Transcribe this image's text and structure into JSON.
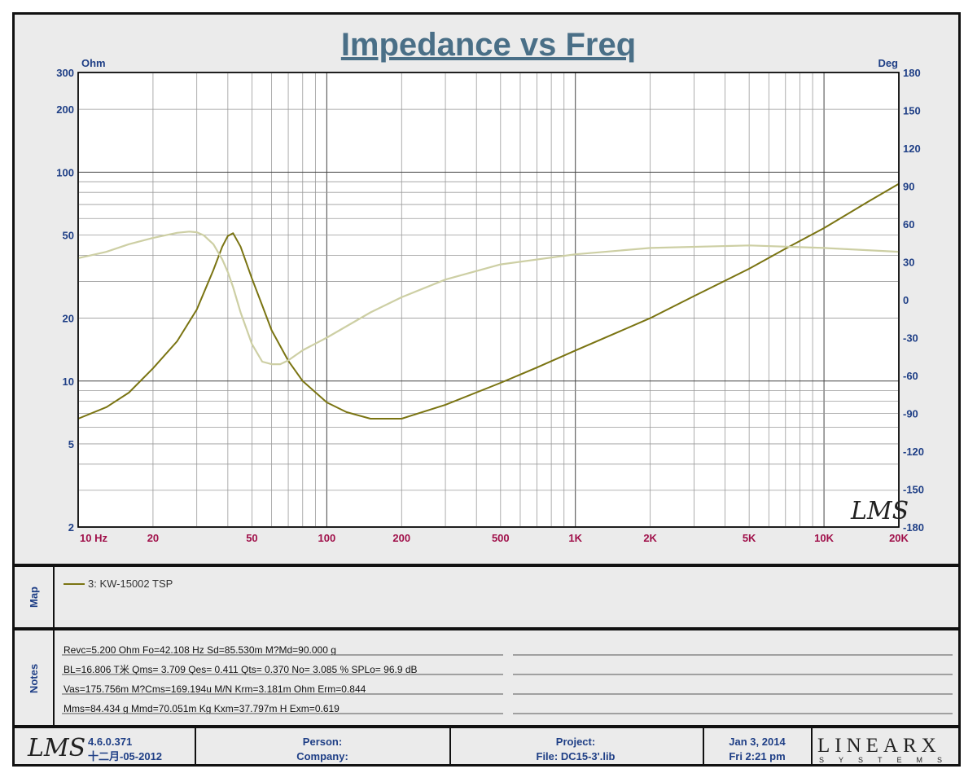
{
  "chart_data": {
    "type": "line",
    "title": "Impedance vs Freq",
    "left_unit": "Ohm",
    "right_unit": "Deg",
    "x_scale": "log",
    "y_scale": "log",
    "xlim": [
      10,
      20000
    ],
    "ylim": [
      2,
      300
    ],
    "y2lim": [
      -180,
      180
    ],
    "grid": true,
    "x_ticks": [
      "10  Hz",
      "20",
      "50",
      "100",
      "200",
      "500",
      "1K",
      "2K",
      "5K",
      "10K",
      "20K"
    ],
    "y_ticks": [
      "300",
      "200",
      "100",
      "50",
      "20",
      "10",
      "5",
      "2"
    ],
    "y2_ticks": [
      "180",
      "150",
      "120",
      "90",
      "60",
      "30",
      "0",
      "-30",
      "-60",
      "-90",
      "-120",
      "-150",
      "-180"
    ],
    "watermark": "LMS",
    "series": [
      {
        "name": "3: KW-15002 TSP",
        "axis": "left",
        "color": "#7a7412",
        "x": [
          10,
          13,
          16,
          20,
          25,
          30,
          35,
          38,
          40,
          42,
          45,
          50,
          55,
          60,
          70,
          80,
          100,
          120,
          150,
          200,
          300,
          500,
          700,
          1000,
          2000,
          3000,
          5000,
          7000,
          10000,
          15000,
          20000
        ],
        "y": [
          6.6,
          7.5,
          8.8,
          11.5,
          15.5,
          22,
          34,
          44,
          49.5,
          51,
          44,
          31,
          23,
          17.5,
          12.5,
          10,
          7.9,
          7.1,
          6.6,
          6.6,
          7.7,
          9.8,
          11.6,
          14,
          20,
          25.5,
          34.5,
          43,
          54,
          72,
          88
        ]
      },
      {
        "name": "phase",
        "axis": "right",
        "color": "#cdcfa4",
        "x": [
          10,
          13,
          16,
          20,
          25,
          28,
          30,
          32,
          35,
          38,
          40,
          42,
          45,
          50,
          55,
          60,
          65,
          70,
          80,
          100,
          150,
          200,
          300,
          500,
          1000,
          2000,
          5000,
          10000,
          20000
        ],
        "y": [
          33,
          38,
          44,
          49,
          53,
          54,
          53.5,
          51,
          44,
          32,
          22,
          10,
          -10,
          -35,
          -49,
          -51,
          -51,
          -48,
          -40,
          -30,
          -10,
          2,
          16,
          28,
          36,
          41,
          43,
          41,
          38
        ]
      }
    ]
  },
  "map_panel": {
    "label": "Map",
    "legend_label": "3: KW-15002 TSP"
  },
  "notes_panel": {
    "label": "Notes",
    "lines": [
      "Revc=5.200 Ohm  Fo=42.108 Hz  Sd=85.530m M?Md=90.000 g",
      "BL=16.806 T米  Qms= 3.709  Qes= 0.411  Qts= 0.370  No= 3.085 %  SPLo= 96.9 dB",
      "Vas=175.756m M?Cms=169.194u M/N  Krm=3.181m Ohm  Erm=0.844",
      "Mms=84.434 g  Mmd=70.051m Kg  Kxm=37.797m H  Exm=0.619"
    ]
  },
  "footer": {
    "logo": "LMS",
    "version": "4.6.0.371",
    "build_date": "十二月-05-2012",
    "person_label": "Person:",
    "company_label": "Company:",
    "project_label": "Project:",
    "file_label": "File: DC15-3'.lib",
    "date": "Jan  3, 2014",
    "time": "Fri  2:21 pm",
    "brand_name": "LINEARX",
    "brand_sub": "SYSTEMS"
  },
  "colors": {
    "impedance": "#7a7412",
    "phase": "#cdcfa4",
    "title": "#4a6f87",
    "axis_text": "#1f3f86",
    "x_axis_text": "#a0104a",
    "background": "#ebebeb"
  }
}
